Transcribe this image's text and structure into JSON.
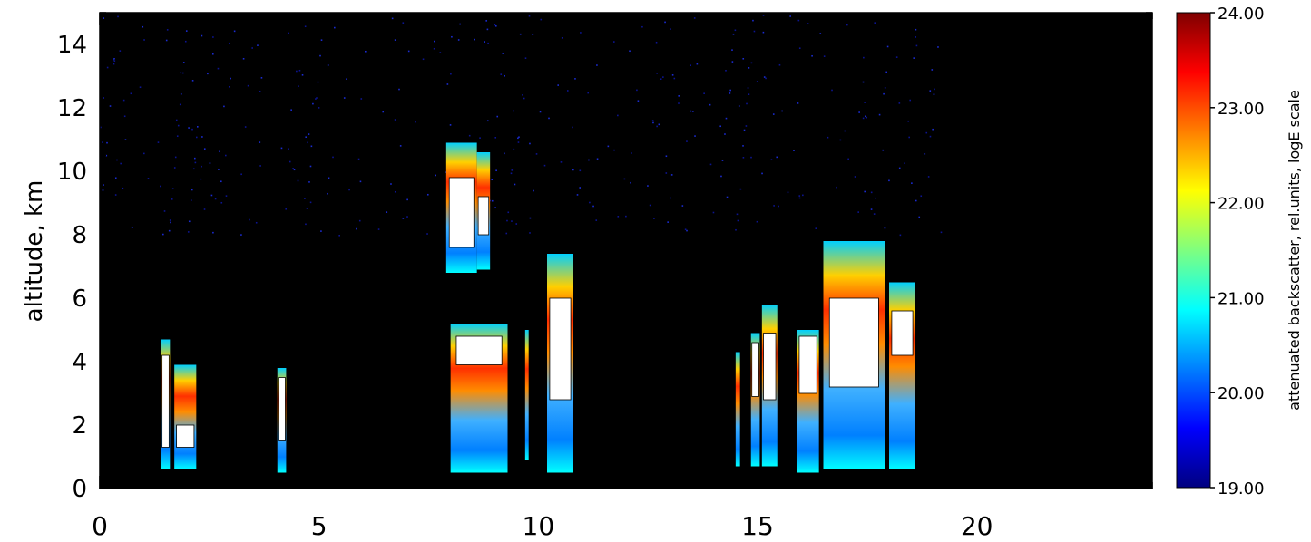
{
  "chart_data": [
    {
      "type": "heatmap",
      "title": "",
      "xlabel": "",
      "ylabel": "altitude, km",
      "xlim": [
        0,
        24
      ],
      "ylim": [
        0,
        15
      ],
      "x_ticks": [
        0,
        5,
        10,
        15,
        20
      ],
      "x_tick_labels": [
        "0",
        "5",
        "10",
        "15",
        "20"
      ],
      "y_ticks": [
        0,
        2,
        4,
        6,
        8,
        10,
        12,
        14
      ],
      "y_tick_labels": [
        "0",
        "2",
        "4",
        "6",
        "8",
        "10",
        "12",
        "14"
      ],
      "background_color": "#000000",
      "saturated_color": "#ffffff",
      "cloud_columns": [
        {
          "x_start": 1.4,
          "x_end": 1.6,
          "bottom": 0.6,
          "top": 4.7,
          "core_bottom": 1.3,
          "core_top": 4.2
        },
        {
          "x_start": 1.7,
          "x_end": 2.2,
          "bottom": 0.6,
          "top": 3.9,
          "core_bottom": 1.3,
          "core_top": 2.0
        },
        {
          "x_start": 4.05,
          "x_end": 4.25,
          "bottom": 0.5,
          "top": 3.8,
          "core_bottom": 1.5,
          "core_top": 3.5
        },
        {
          "x_start": 7.9,
          "x_end": 8.6,
          "bottom": 6.8,
          "top": 10.9,
          "core_bottom": 7.6,
          "core_top": 9.8
        },
        {
          "x_start": 8.6,
          "x_end": 8.9,
          "bottom": 6.9,
          "top": 10.6,
          "core_bottom": 8.0,
          "core_top": 9.2
        },
        {
          "x_start": 8.0,
          "x_end": 9.3,
          "bottom": 0.5,
          "top": 5.2,
          "core_bottom": 3.9,
          "core_top": 4.8
        },
        {
          "x_start": 9.7,
          "x_end": 9.78,
          "bottom": 0.9,
          "top": 5.0,
          "core_bottom": 0,
          "core_top": 0
        },
        {
          "x_start": 10.2,
          "x_end": 10.8,
          "bottom": 0.5,
          "top": 7.4,
          "core_bottom": 2.8,
          "core_top": 6.0
        },
        {
          "x_start": 14.5,
          "x_end": 14.6,
          "bottom": 0.7,
          "top": 4.3,
          "core_bottom": 0,
          "core_top": 0
        },
        {
          "x_start": 14.85,
          "x_end": 15.05,
          "bottom": 0.7,
          "top": 4.9,
          "core_bottom": 2.9,
          "core_top": 4.6
        },
        {
          "x_start": 15.1,
          "x_end": 15.45,
          "bottom": 0.7,
          "top": 5.8,
          "core_bottom": 2.8,
          "core_top": 4.9
        },
        {
          "x_start": 15.9,
          "x_end": 16.4,
          "bottom": 0.5,
          "top": 5.0,
          "core_bottom": 3.0,
          "core_top": 4.8
        },
        {
          "x_start": 16.5,
          "x_end": 17.9,
          "bottom": 0.6,
          "top": 7.8,
          "core_bottom": 3.2,
          "core_top": 6.0
        },
        {
          "x_start": 18.0,
          "x_end": 18.6,
          "bottom": 0.6,
          "top": 6.5,
          "core_bottom": 4.2,
          "core_top": 5.6
        }
      ]
    },
    {
      "type": "colorbar",
      "label": "attenuated backscatter, rel.units, logE scale",
      "range": [
        19,
        24
      ],
      "ticks": [
        19,
        20,
        21,
        22,
        23,
        24
      ],
      "tick_labels": [
        "19.00",
        "20.00",
        "21.00",
        "22.00",
        "23.00",
        "24.00"
      ],
      "colors": [
        "#00007f",
        "#0000ff",
        "#007fff",
        "#00ffff",
        "#7fff7f",
        "#ffff00",
        "#ff7f00",
        "#ff0000",
        "#7f0000"
      ]
    }
  ]
}
